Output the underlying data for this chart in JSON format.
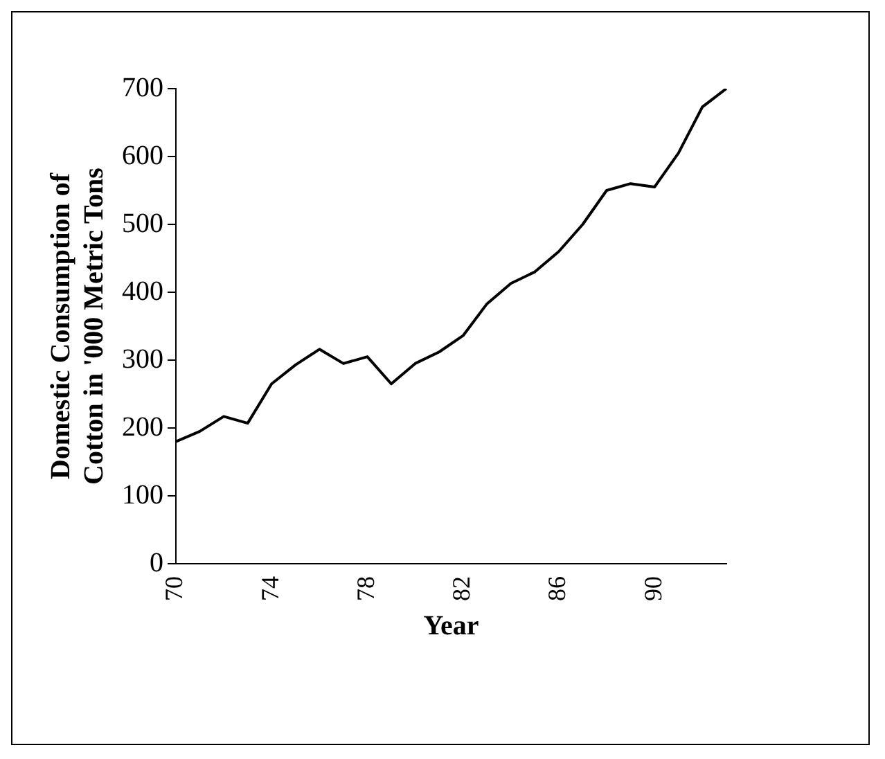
{
  "chart_data": {
    "type": "line",
    "xlabel": "Year",
    "ylabel": "Domestic Consumption of Cotton in '000 Metric Tons",
    "categories": [
      "70",
      null,
      null,
      null,
      "74",
      null,
      null,
      null,
      "78",
      null,
      null,
      null,
      "82",
      null,
      null,
      null,
      "86",
      null,
      null,
      null,
      "90",
      null,
      null,
      null
    ],
    "series": [
      {
        "color": "#000000",
        "values": [
          180,
          195,
          217,
          207,
          265,
          293,
          316,
          295,
          305,
          265,
          295,
          312,
          336,
          383,
          413,
          430,
          460,
          500,
          550,
          560,
          555,
          605,
          673,
          700
        ]
      }
    ],
    "ylim": [
      0,
      700
    ],
    "yticks": [
      0,
      100,
      200,
      300,
      400,
      500,
      600,
      700
    ],
    "grid": false,
    "legend": false,
    "marker": "none",
    "line_style": "solid"
  }
}
